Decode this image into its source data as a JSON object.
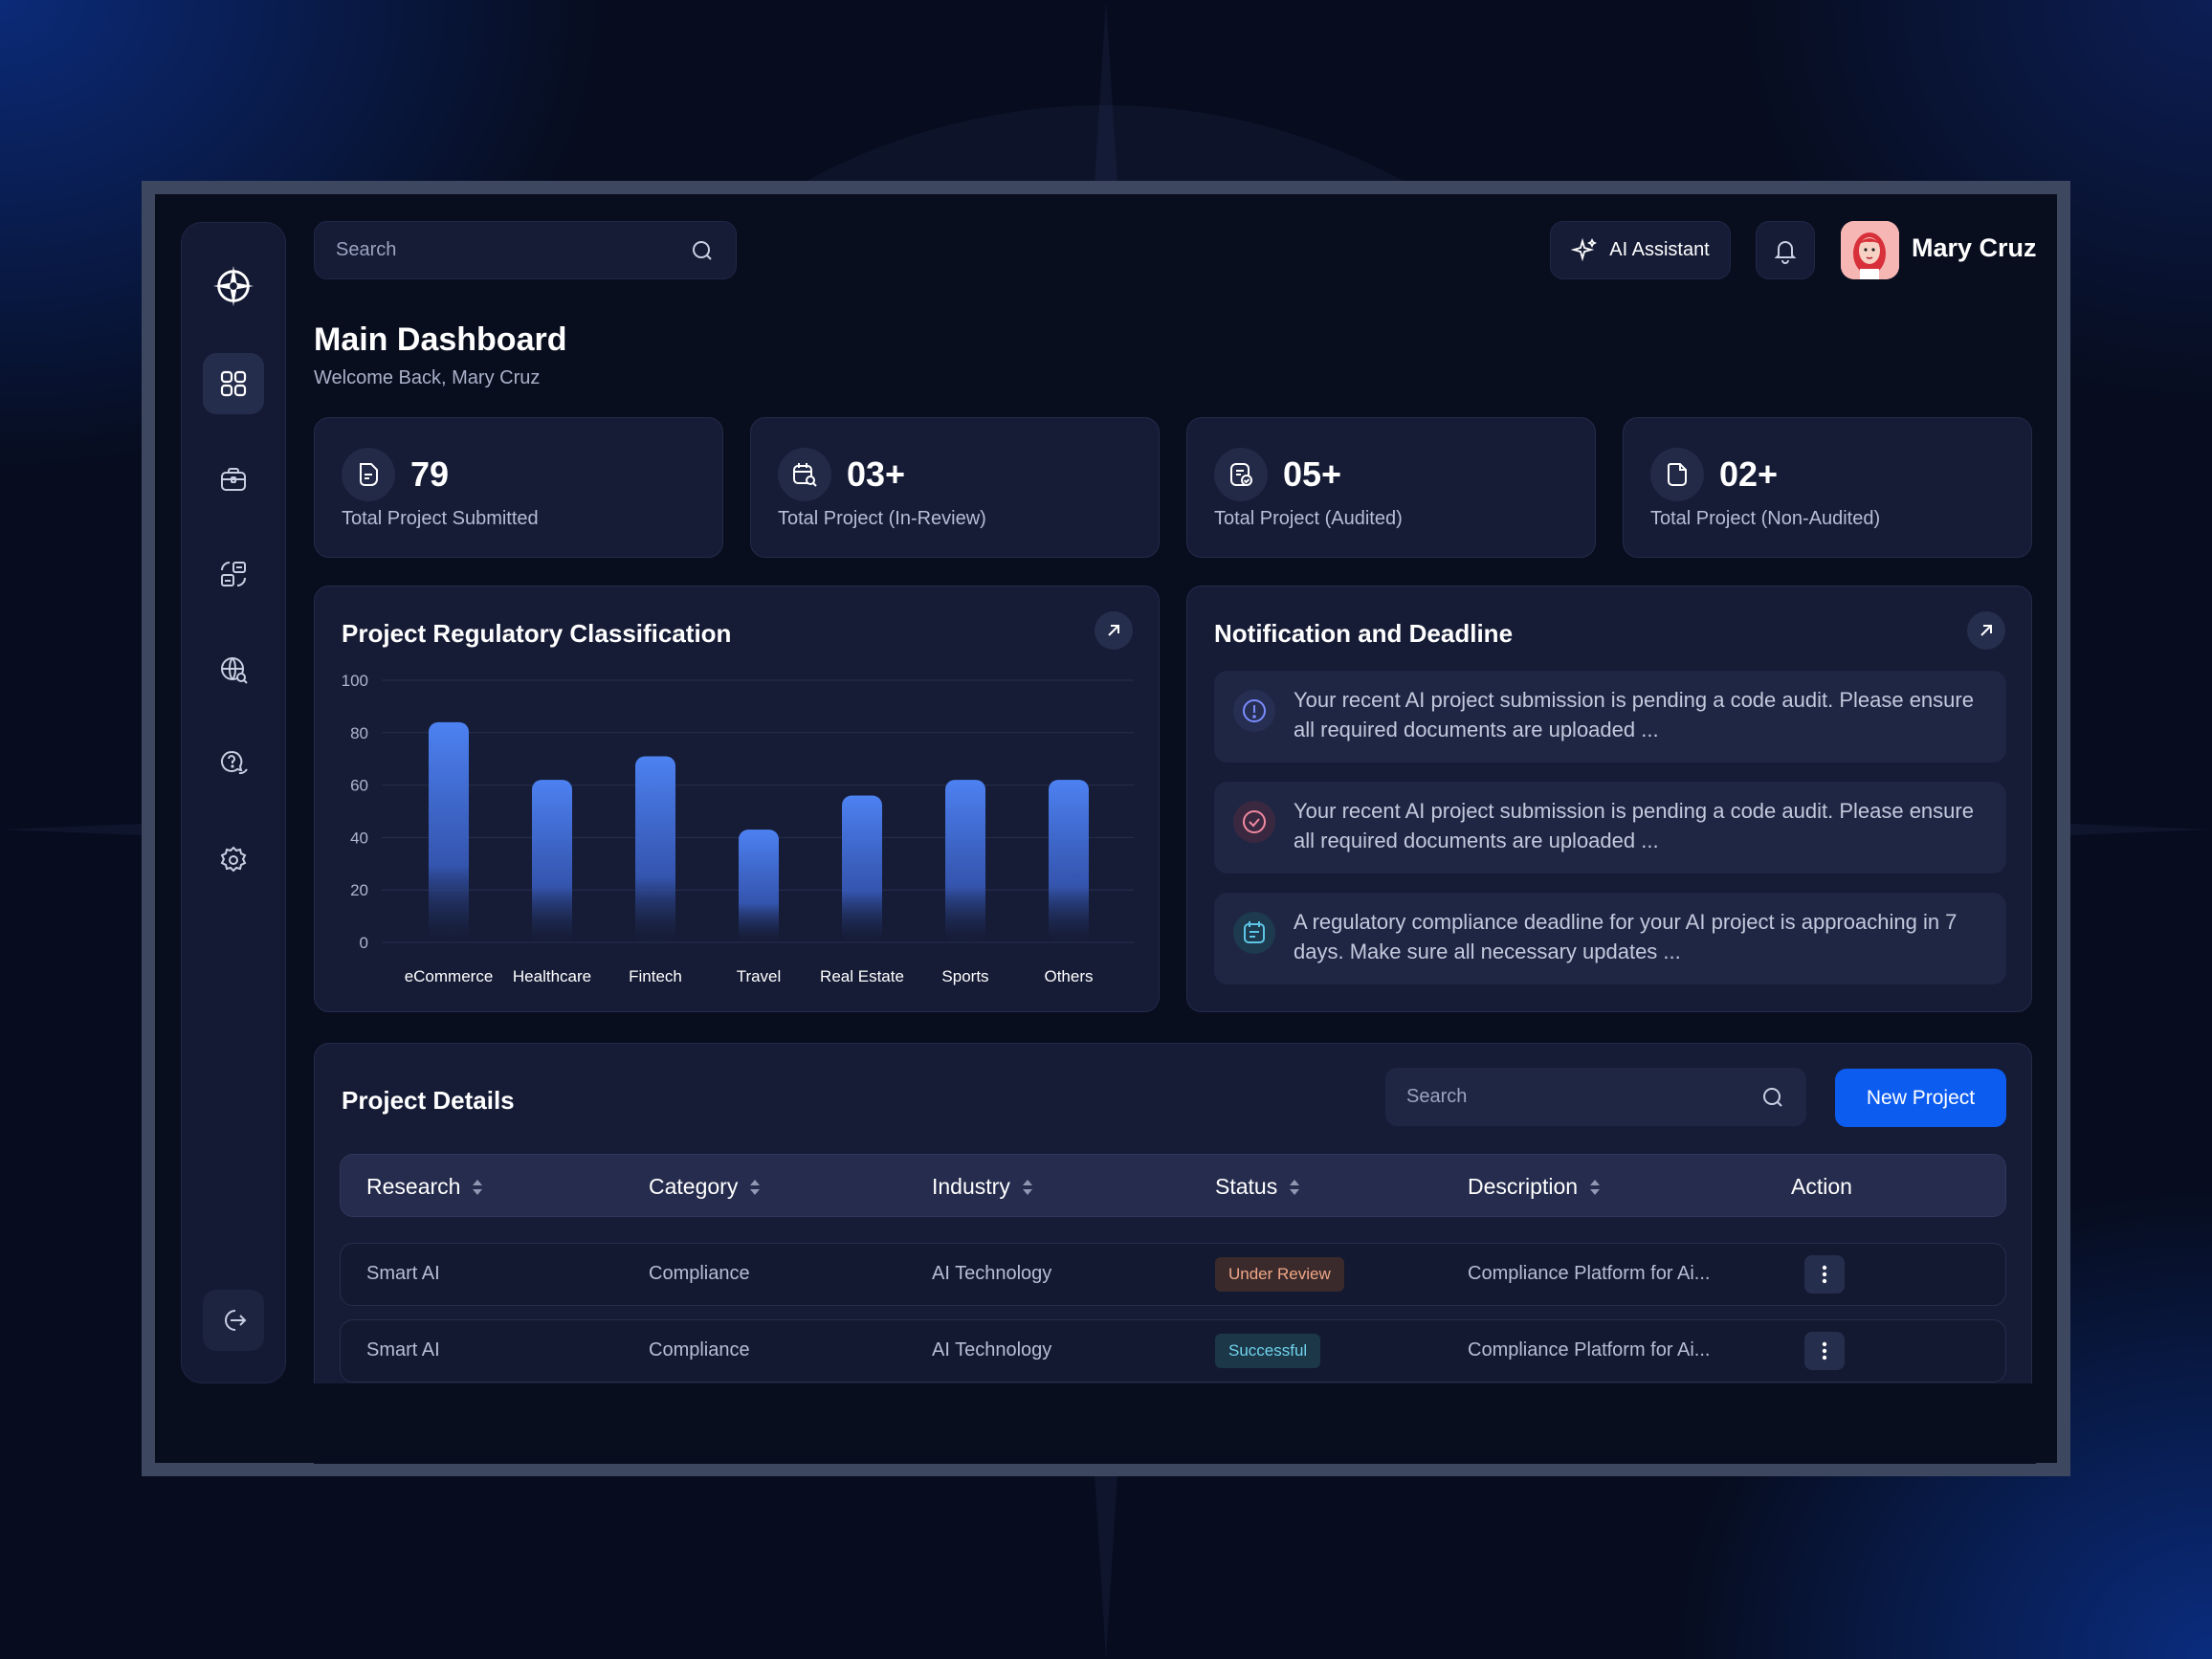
{
  "search": {
    "placeholder": "Search"
  },
  "header": {
    "ai_assistant": "AI Assistant",
    "user_name": "Mary Cruz"
  },
  "page": {
    "title": "Main Dashboard",
    "subtitle": "Welcome Back, Mary Cruz"
  },
  "sidebar": {
    "items": [
      {
        "icon": "compass-logo-icon"
      },
      {
        "icon": "dashboard-grid-icon",
        "active": true
      },
      {
        "icon": "briefcase-icon"
      },
      {
        "icon": "projects-layout-icon"
      },
      {
        "icon": "globe-search-icon"
      },
      {
        "icon": "help-chat-icon"
      },
      {
        "icon": "settings-gear-icon"
      },
      {
        "icon": "logout-icon"
      }
    ]
  },
  "stats": [
    {
      "value": "79",
      "label": "Total Project Submitted",
      "icon": "document-icon"
    },
    {
      "value": "03+",
      "label": "Total Project (In-Review)",
      "icon": "calendar-search-icon"
    },
    {
      "value": "05+",
      "label": "Total Project (Audited)",
      "icon": "checked-document-icon"
    },
    {
      "value": "02+",
      "label": "Total Project (Non-Audited)",
      "icon": "blank-document-icon"
    }
  ],
  "chart_card": {
    "title": "Project Regulatory Classification"
  },
  "chart_data": {
    "type": "bar",
    "categories": [
      "eCommerce",
      "Healthcare",
      "Fintech",
      "Travel",
      "Real Estate",
      "Sports",
      "Others"
    ],
    "values": [
      84,
      62,
      71,
      43,
      56,
      62,
      62
    ],
    "yticks": [
      "0",
      "20",
      "40",
      "60",
      "80",
      "100"
    ],
    "ylim": [
      0,
      100
    ],
    "grid": true,
    "color": "#4d82f2"
  },
  "notifications": {
    "title": "Notification and Deadline",
    "items": [
      {
        "icon": "alert-info-icon",
        "color": "#7b8cff",
        "text": "Your recent AI project submission is pending a code audit. Please ensure all required documents are uploaded ..."
      },
      {
        "icon": "check-circle-icon",
        "color": "#f08aa0",
        "text": "Your recent AI project submission is pending a code audit. Please ensure all required documents are uploaded ..."
      },
      {
        "icon": "calendar-icon",
        "color": "#5ec6e6",
        "text": "A regulatory compliance deadline for your AI project is approaching in 7 days. Make sure all necessary updates ..."
      }
    ]
  },
  "projects": {
    "title": "Project Details",
    "search_placeholder": "Search",
    "new_button": "New Project",
    "columns": [
      "Research",
      "Category",
      "Industry",
      "Status",
      "Description",
      "Action"
    ],
    "rows": [
      {
        "research": "Smart AI",
        "category": "Compliance",
        "industry": "AI Technology",
        "status": "Under Review",
        "description": "Compliance Platform for Ai..."
      },
      {
        "research": "Smart AI",
        "category": "Compliance",
        "industry": "AI Technology",
        "status": "Successful",
        "description": "Compliance Platform for Ai..."
      }
    ]
  }
}
